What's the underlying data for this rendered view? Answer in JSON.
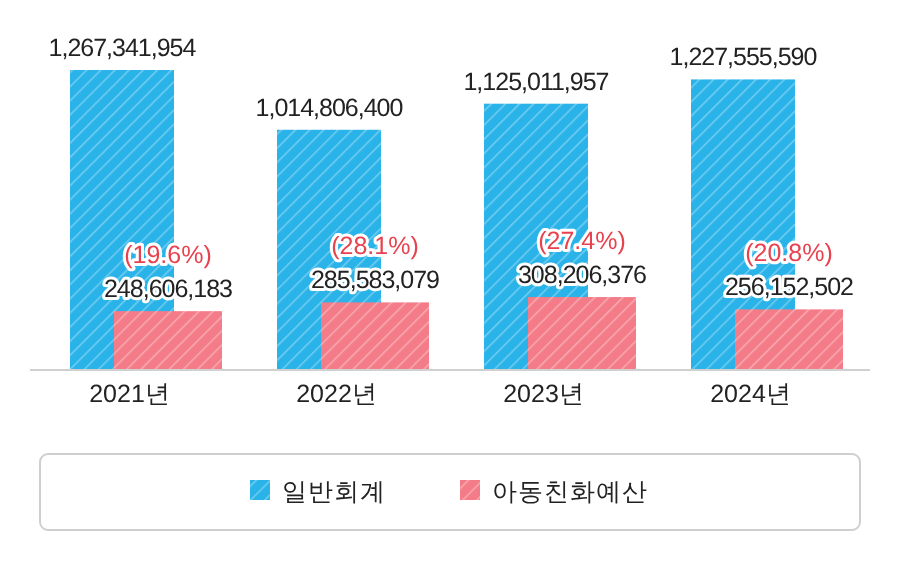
{
  "chart_data": {
    "type": "bar",
    "categories": [
      "2021년",
      "2022년",
      "2023년",
      "2024년"
    ],
    "series": [
      {
        "name": "일반회계",
        "color": "#29b3e8",
        "values": [
          1267341954,
          1014806400,
          1125011957,
          1227555590
        ],
        "value_labels": [
          "1,267,341,954",
          "1,014,806,400",
          "1,125,011,957",
          "1,227,555,590"
        ]
      },
      {
        "name": "아동친화예산",
        "color": "#f47c88",
        "values": [
          248606183,
          285583079,
          308206376,
          256152502
        ],
        "value_labels": [
          "248,606,183",
          "285,583,079",
          "308,206,376",
          "256,152,502"
        ]
      }
    ],
    "legend": "bottom",
    "annotations": [
      {
        "text": "(19.6%)",
        "x": "2021년",
        "y": 248606183
      },
      {
        "text": "(28.1%)",
        "x": "2022년",
        "y": 285583079
      },
      {
        "text": "(27.4%)",
        "x": "2023년",
        "y": 308206376
      },
      {
        "text": "(20.8%)",
        "x": "2024년",
        "y": 256152502
      }
    ]
  }
}
